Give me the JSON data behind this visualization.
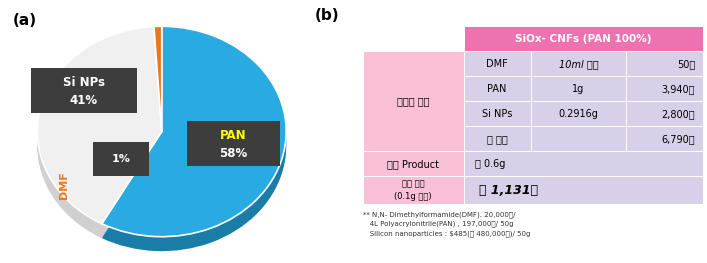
{
  "pie_values": [
    58,
    41,
    1
  ],
  "pie_colors": [
    "#29ABE2",
    "#F0F0F0",
    "#E87722"
  ],
  "pie_edge_colors": [
    "#1A7DA8",
    "#D0D0D0",
    "#B35A10"
  ],
  "label_a": "(a)",
  "label_b": "(b)",
  "pan_label": "PAN",
  "pan_pct": "58%",
  "sinps_label": "Si NPs",
  "sinps_pct": "41%",
  "dmf_label": "DMF",
  "dmf_pct": "1%",
  "table_header": "SiOx- CNFs (PAN 100%)",
  "table_header_bg": "#EE72B0",
  "table_row1_label": "시약별 가격",
  "table_rows": [
    [
      "DMF",
      "10ml 기준",
      "50원"
    ],
    [
      "PAN",
      "1g",
      "3,940원"
    ],
    [
      "Si NPs",
      "0.2916g",
      "2,800원"
    ],
    [
      "중 합계",
      "",
      "6,790원"
    ]
  ],
  "row_total_label": "성 합계",
  "row2_label": "최종 Product",
  "row2_val": "약 0.6g",
  "row3_label": "최종 가격\n(0.1g 기준)",
  "row3_val": "약 1,131원",
  "footnote_line1": "** N,N- Dimethylformamide(DMF). 20,000원/",
  "footnote_line2": "   4L Polyacrylonitrile(PAN) , 197,000원/ 50g",
  "footnote_line3": "   Silicon nanoparticles : $485(약 480,000원)/ 50g",
  "light_pink": "#F9C0D8",
  "lavender": "#D8D0E8",
  "dark_box": "#3D3D3D",
  "white": "#FFFFFF"
}
